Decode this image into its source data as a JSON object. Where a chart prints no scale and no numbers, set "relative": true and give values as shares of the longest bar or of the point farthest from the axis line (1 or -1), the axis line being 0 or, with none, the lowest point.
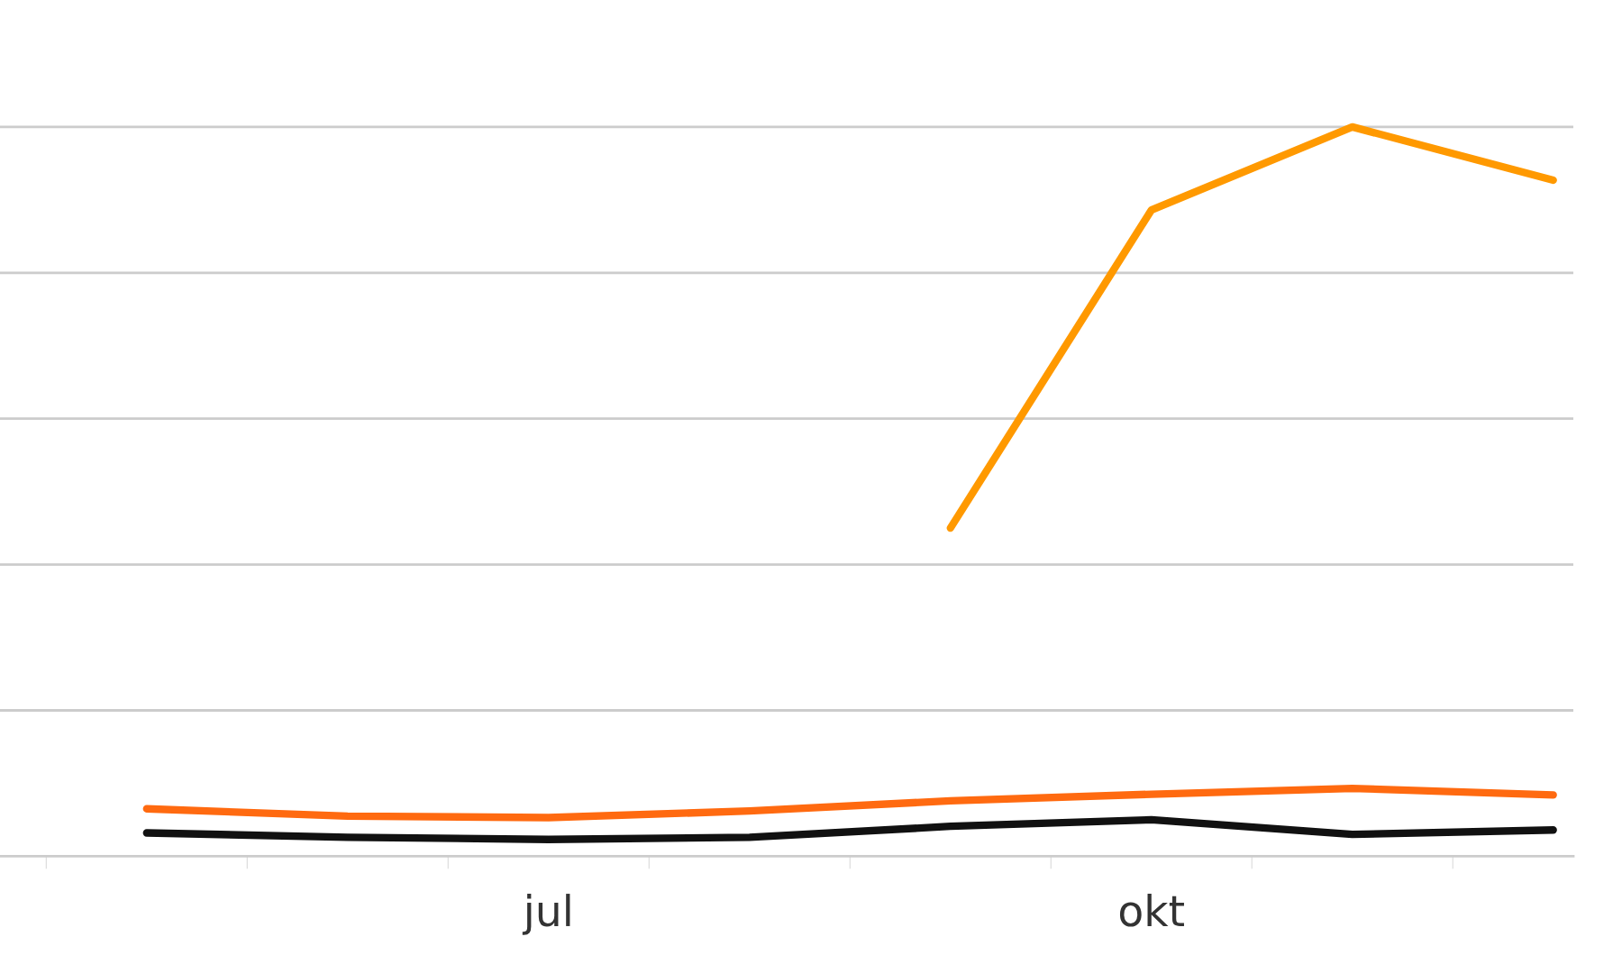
{
  "chart_data": {
    "type": "line",
    "relative": true,
    "categories": [
      null,
      null,
      "jul",
      null,
      null,
      "okt",
      null,
      null
    ],
    "series": [
      {
        "color": "#ff9900",
        "values": [
          null,
          null,
          null,
          null,
          0.45,
          0.886,
          1,
          0.927
        ]
      },
      {
        "color": "#ff6a10",
        "values": [
          0.065,
          0.055,
          0.053,
          0.062,
          0.076,
          0.085,
          0.093,
          0.084
        ]
      },
      {
        "color": "#111111",
        "values": [
          0.032,
          0.026,
          0.023,
          0.026,
          0.041,
          0.05,
          0.03,
          0.036
        ]
      }
    ],
    "grid": "y",
    "legend": false,
    "marker": "none",
    "line_style": "solid"
  }
}
